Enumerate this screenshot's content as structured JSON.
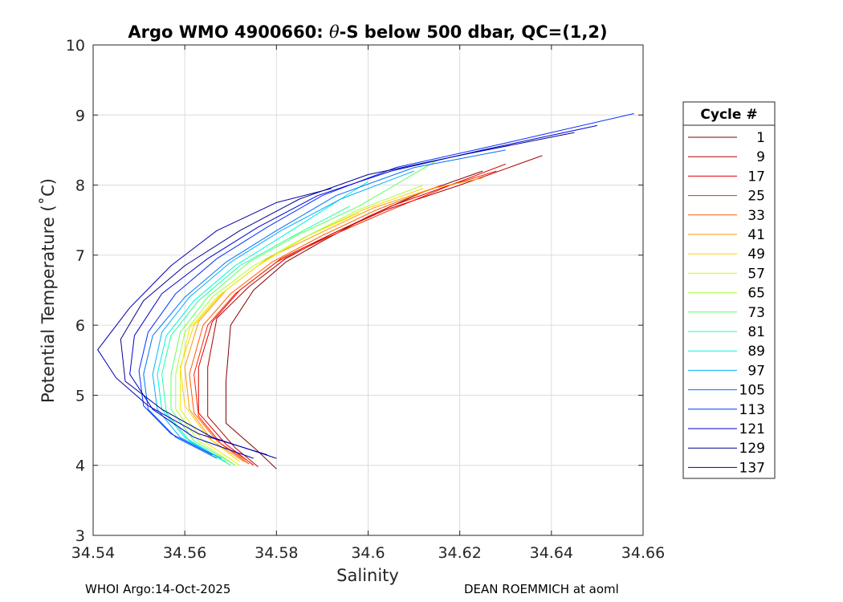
{
  "chart_data": {
    "type": "line",
    "title": "Argo WMO 4900660: θ-S below 500 dbar,  QC=(1,2)",
    "title_parts": {
      "prefix": "Argo WMO 4900660: ",
      "symbol": "θ",
      "suffix": "-S below 500 dbar,  QC=(1,2)"
    },
    "xlabel": "Salinity",
    "ylabel": "Potential Temperature (˚C)",
    "xlim": [
      34.54,
      34.66
    ],
    "ylim": [
      3,
      10
    ],
    "xticks": [
      34.54,
      34.56,
      34.58,
      34.6,
      34.62,
      34.64,
      34.66
    ],
    "xtick_labels": [
      "34.54",
      "34.56",
      "34.58",
      "34.6",
      "34.62",
      "34.64",
      "34.66"
    ],
    "yticks": [
      3,
      4,
      5,
      6,
      7,
      8,
      9,
      10
    ],
    "ytick_labels": [
      "3",
      "4",
      "5",
      "6",
      "7",
      "8",
      "9",
      "10"
    ],
    "grid": true,
    "legend": {
      "title": "Cycle #",
      "placement": "right",
      "entries": [
        {
          "label": "1",
          "color": "#800000"
        },
        {
          "label": "9",
          "color": "#b00000"
        },
        {
          "label": "17",
          "color": "#e00000"
        },
        {
          "label": "25",
          "color": "#ff2000"
        },
        {
          "label": "33",
          "color": "#ff5a00"
        },
        {
          "label": "41",
          "color": "#ff9800"
        },
        {
          "label": "49",
          "color": "#ffd200"
        },
        {
          "label": "57",
          "color": "#e8f010"
        },
        {
          "label": "65",
          "color": "#a8ff40"
        },
        {
          "label": "73",
          "color": "#60ff60"
        },
        {
          "label": "81",
          "color": "#20ffa0"
        },
        {
          "label": "89",
          "color": "#00f0e0"
        },
        {
          "label": "97",
          "color": "#00b0ff"
        },
        {
          "label": "105",
          "color": "#0070ff"
        },
        {
          "label": "113",
          "color": "#0030ff"
        },
        {
          "label": "121",
          "color": "#0000d0"
        },
        {
          "label": "129",
          "color": "#000090"
        },
        {
          "label": "137",
          "color": "#0000b0"
        }
      ]
    },
    "series": [
      {
        "name": "1",
        "x": [
          34.58,
          34.576,
          34.569,
          34.569,
          34.57,
          34.575,
          34.582,
          34.59,
          34.6,
          34.612,
          34.625
        ],
        "y": [
          3.95,
          4.2,
          4.6,
          5.2,
          6.0,
          6.5,
          6.9,
          7.2,
          7.55,
          7.9,
          8.2
        ]
      },
      {
        "name": "9",
        "x": [
          34.576,
          34.571,
          34.565,
          34.565,
          34.567,
          34.574,
          34.582,
          34.592,
          34.604,
          34.62,
          34.638
        ],
        "y": [
          3.98,
          4.25,
          4.7,
          5.4,
          6.1,
          6.55,
          6.95,
          7.3,
          7.65,
          8.0,
          8.42
        ]
      },
      {
        "name": "17",
        "x": [
          34.575,
          34.569,
          34.563,
          34.563,
          34.566,
          34.572,
          34.581,
          34.592,
          34.605,
          34.62,
          34.63
        ],
        "y": [
          4.0,
          4.3,
          4.75,
          5.4,
          6.05,
          6.5,
          6.95,
          7.3,
          7.7,
          8.05,
          8.3
        ]
      },
      {
        "name": "25",
        "x": [
          34.574,
          34.568,
          34.563,
          34.562,
          34.565,
          34.571,
          34.58,
          34.591,
          34.604,
          34.618,
          34.628
        ],
        "y": [
          4.02,
          4.3,
          4.7,
          5.3,
          6.0,
          6.45,
          6.9,
          7.25,
          7.62,
          8.0,
          8.2
        ]
      },
      {
        "name": "33",
        "x": [
          34.574,
          34.567,
          34.562,
          34.561,
          34.564,
          34.57,
          34.579,
          34.59,
          34.602,
          34.616
        ],
        "y": [
          4.05,
          4.35,
          4.75,
          5.3,
          6.0,
          6.45,
          6.9,
          7.28,
          7.65,
          8.0
        ]
      },
      {
        "name": "41",
        "x": [
          34.573,
          34.566,
          34.561,
          34.56,
          34.563,
          34.569,
          34.578,
          34.589,
          34.601,
          34.614,
          34.625
        ],
        "y": [
          4.05,
          4.35,
          4.8,
          5.4,
          6.05,
          6.5,
          6.95,
          7.3,
          7.67,
          7.95,
          8.1
        ]
      },
      {
        "name": "49",
        "x": [
          34.572,
          34.565,
          34.56,
          34.559,
          34.562,
          34.568,
          34.577,
          34.587,
          34.599,
          34.612
        ],
        "y": [
          4.05,
          4.4,
          4.85,
          5.4,
          6.0,
          6.45,
          6.9,
          7.28,
          7.65,
          7.95
        ]
      },
      {
        "name": "57",
        "x": [
          34.572,
          34.564,
          34.559,
          34.559,
          34.561,
          34.567,
          34.576,
          34.586,
          34.598
        ],
        "y": [
          4.0,
          4.35,
          4.8,
          5.35,
          5.95,
          6.4,
          6.85,
          7.25,
          7.6
        ]
      },
      {
        "name": "65",
        "x": [
          34.571,
          34.563,
          34.558,
          34.558,
          34.56,
          34.566,
          34.575,
          34.586,
          34.598,
          34.612
        ],
        "y": [
          4.0,
          4.35,
          4.8,
          5.3,
          5.9,
          6.4,
          6.85,
          7.25,
          7.65,
          8.0
        ]
      },
      {
        "name": "73",
        "x": [
          34.571,
          34.562,
          34.557,
          34.557,
          34.559,
          34.565,
          34.574,
          34.585,
          34.598,
          34.615
        ],
        "y": [
          4.0,
          4.35,
          4.8,
          5.3,
          5.9,
          6.4,
          6.9,
          7.3,
          7.7,
          8.35
        ]
      },
      {
        "name": "81",
        "x": [
          34.57,
          34.561,
          34.556,
          34.555,
          34.557,
          34.563,
          34.572,
          34.583,
          34.596
        ],
        "y": [
          4.0,
          4.35,
          4.75,
          5.3,
          5.85,
          6.35,
          6.85,
          7.25,
          7.7
        ]
      },
      {
        "name": "89",
        "x": [
          34.569,
          34.56,
          34.555,
          34.554,
          34.556,
          34.562,
          34.571,
          34.582,
          34.594,
          34.6
        ],
        "y": [
          4.05,
          4.4,
          4.8,
          5.3,
          5.85,
          6.35,
          6.85,
          7.3,
          7.8,
          8.05
        ]
      },
      {
        "name": "97",
        "x": [
          34.568,
          34.559,
          34.554,
          34.553,
          34.555,
          34.561,
          34.57,
          34.581,
          34.594,
          34.61
        ],
        "y": [
          4.1,
          4.4,
          4.8,
          5.3,
          5.9,
          6.4,
          6.9,
          7.35,
          7.8,
          8.2
        ]
      },
      {
        "name": "105",
        "x": [
          34.567,
          34.558,
          34.552,
          34.551,
          34.553,
          34.56,
          34.569,
          34.58,
          34.593,
          34.61,
          34.63
        ],
        "y": [
          4.1,
          4.4,
          4.8,
          5.3,
          5.85,
          6.4,
          6.9,
          7.35,
          7.85,
          8.25,
          8.5
        ]
      },
      {
        "name": "113",
        "x": [
          34.566,
          34.557,
          34.551,
          34.55,
          34.552,
          34.558,
          34.567,
          34.578,
          34.59,
          34.606,
          34.63,
          34.658
        ],
        "y": [
          4.15,
          4.45,
          4.85,
          5.35,
          5.9,
          6.45,
          6.95,
          7.4,
          7.85,
          8.25,
          8.6,
          9.02
        ]
      },
      {
        "name": "121",
        "x": [
          34.575,
          34.562,
          34.553,
          34.548,
          34.549,
          34.555,
          34.565,
          34.576,
          34.589,
          34.605,
          34.625,
          34.65
        ],
        "y": [
          4.1,
          4.4,
          4.8,
          5.3,
          5.85,
          6.45,
          6.95,
          7.4,
          7.85,
          8.2,
          8.5,
          8.85
        ]
      },
      {
        "name": "129",
        "x": [
          34.58,
          34.566,
          34.555,
          34.547,
          34.546,
          34.551,
          34.56,
          34.572,
          34.585,
          34.6,
          34.622,
          34.645
        ],
        "y": [
          4.1,
          4.4,
          4.8,
          5.2,
          5.8,
          6.35,
          6.85,
          7.35,
          7.8,
          8.15,
          8.45,
          8.75
        ]
      },
      {
        "name": "137",
        "x": [
          34.578,
          34.563,
          34.552,
          34.545,
          34.541,
          34.548,
          34.557,
          34.567,
          34.58,
          34.592
        ],
        "y": [
          4.15,
          4.45,
          4.85,
          5.25,
          5.65,
          6.25,
          6.85,
          7.35,
          7.75,
          7.95
        ]
      }
    ]
  },
  "footer": {
    "left": "WHOI Argo:14-Oct-2025",
    "right": "DEAN ROEMMICH at aoml"
  }
}
